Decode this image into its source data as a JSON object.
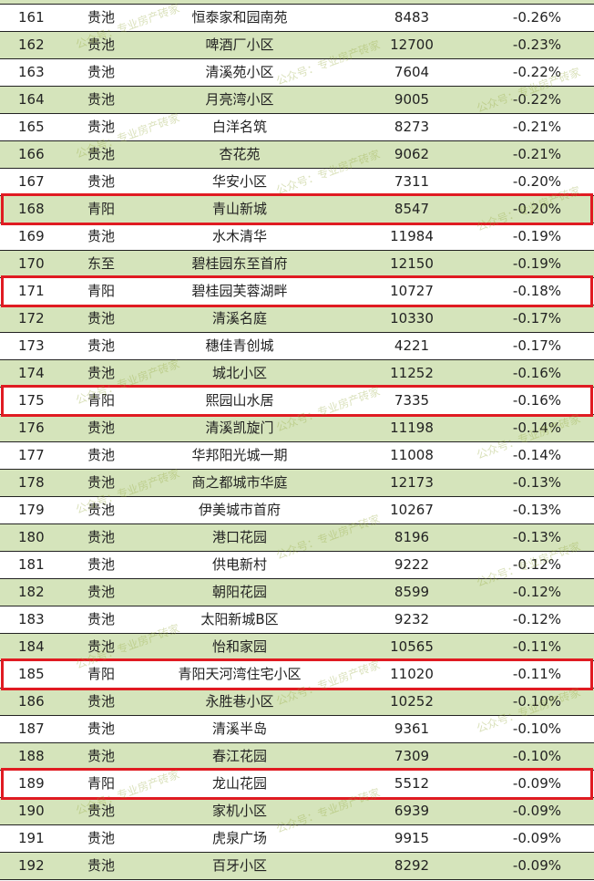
{
  "watermark": "公众号：专业房产砖家",
  "colors": {
    "row_green": "#d5e4bb",
    "row_white": "#ffffff",
    "highlight_border": "#e01b22"
  },
  "rows": [
    {
      "rank": "161",
      "district": "贵池",
      "name": "恒泰家和园南苑",
      "price": "8483",
      "change": "-0.26%",
      "highlight": false
    },
    {
      "rank": "162",
      "district": "贵池",
      "name": "啤酒厂小区",
      "price": "12700",
      "change": "-0.23%",
      "highlight": false
    },
    {
      "rank": "163",
      "district": "贵池",
      "name": "清溪苑小区",
      "price": "7604",
      "change": "-0.22%",
      "highlight": false
    },
    {
      "rank": "164",
      "district": "贵池",
      "name": "月亮湾小区",
      "price": "9005",
      "change": "-0.22%",
      "highlight": false
    },
    {
      "rank": "165",
      "district": "贵池",
      "name": "白洋名筑",
      "price": "8273",
      "change": "-0.21%",
      "highlight": false
    },
    {
      "rank": "166",
      "district": "贵池",
      "name": "杏花苑",
      "price": "9062",
      "change": "-0.21%",
      "highlight": false
    },
    {
      "rank": "167",
      "district": "贵池",
      "name": "华安小区",
      "price": "7311",
      "change": "-0.20%",
      "highlight": false
    },
    {
      "rank": "168",
      "district": "青阳",
      "name": "青山新城",
      "price": "8547",
      "change": "-0.20%",
      "highlight": true
    },
    {
      "rank": "169",
      "district": "贵池",
      "name": "水木清华",
      "price": "11984",
      "change": "-0.19%",
      "highlight": false
    },
    {
      "rank": "170",
      "district": "东至",
      "name": "碧桂园东至首府",
      "price": "12150",
      "change": "-0.19%",
      "highlight": false
    },
    {
      "rank": "171",
      "district": "青阳",
      "name": "碧桂园芙蓉湖畔",
      "price": "10727",
      "change": "-0.18%",
      "highlight": true
    },
    {
      "rank": "172",
      "district": "贵池",
      "name": "清溪名庭",
      "price": "10330",
      "change": "-0.17%",
      "highlight": false
    },
    {
      "rank": "173",
      "district": "贵池",
      "name": "穗佳青创城",
      "price": "4221",
      "change": "-0.17%",
      "highlight": false
    },
    {
      "rank": "174",
      "district": "贵池",
      "name": "城北小区",
      "price": "11252",
      "change": "-0.16%",
      "highlight": false
    },
    {
      "rank": "175",
      "district": "青阳",
      "name": "熙园山水居",
      "price": "7335",
      "change": "-0.16%",
      "highlight": true
    },
    {
      "rank": "176",
      "district": "贵池",
      "name": "清溪凯旋门",
      "price": "11198",
      "change": "-0.14%",
      "highlight": false
    },
    {
      "rank": "177",
      "district": "贵池",
      "name": "华邦阳光城一期",
      "price": "11008",
      "change": "-0.14%",
      "highlight": false
    },
    {
      "rank": "178",
      "district": "贵池",
      "name": "商之都城市华庭",
      "price": "12173",
      "change": "-0.13%",
      "highlight": false
    },
    {
      "rank": "179",
      "district": "贵池",
      "name": "伊美城市首府",
      "price": "10267",
      "change": "-0.13%",
      "highlight": false
    },
    {
      "rank": "180",
      "district": "贵池",
      "name": "港口花园",
      "price": "8196",
      "change": "-0.13%",
      "highlight": false
    },
    {
      "rank": "181",
      "district": "贵池",
      "name": "供电新村",
      "price": "9222",
      "change": "-0.12%",
      "highlight": false
    },
    {
      "rank": "182",
      "district": "贵池",
      "name": "朝阳花园",
      "price": "8599",
      "change": "-0.12%",
      "highlight": false
    },
    {
      "rank": "183",
      "district": "贵池",
      "name": "太阳新城B区",
      "price": "9232",
      "change": "-0.12%",
      "highlight": false
    },
    {
      "rank": "184",
      "district": "贵池",
      "name": "怡和家园",
      "price": "10565",
      "change": "-0.11%",
      "highlight": false
    },
    {
      "rank": "185",
      "district": "青阳",
      "name": "青阳天河湾住宅小区",
      "price": "11020",
      "change": "-0.11%",
      "highlight": true
    },
    {
      "rank": "186",
      "district": "贵池",
      "name": "永胜巷小区",
      "price": "10252",
      "change": "-0.10%",
      "highlight": false
    },
    {
      "rank": "187",
      "district": "贵池",
      "name": "清溪半岛",
      "price": "9361",
      "change": "-0.10%",
      "highlight": false
    },
    {
      "rank": "188",
      "district": "贵池",
      "name": "春江花园",
      "price": "7309",
      "change": "-0.10%",
      "highlight": false
    },
    {
      "rank": "189",
      "district": "青阳",
      "name": "龙山花园",
      "price": "5512",
      "change": "-0.09%",
      "highlight": true
    },
    {
      "rank": "190",
      "district": "贵池",
      "name": "家机小区",
      "price": "6939",
      "change": "-0.09%",
      "highlight": false
    },
    {
      "rank": "191",
      "district": "贵池",
      "name": "虎泉广场",
      "price": "9915",
      "change": "-0.09%",
      "highlight": false
    },
    {
      "rank": "192",
      "district": "贵池",
      "name": "百牙小区",
      "price": "8292",
      "change": "-0.09%",
      "highlight": false
    }
  ]
}
